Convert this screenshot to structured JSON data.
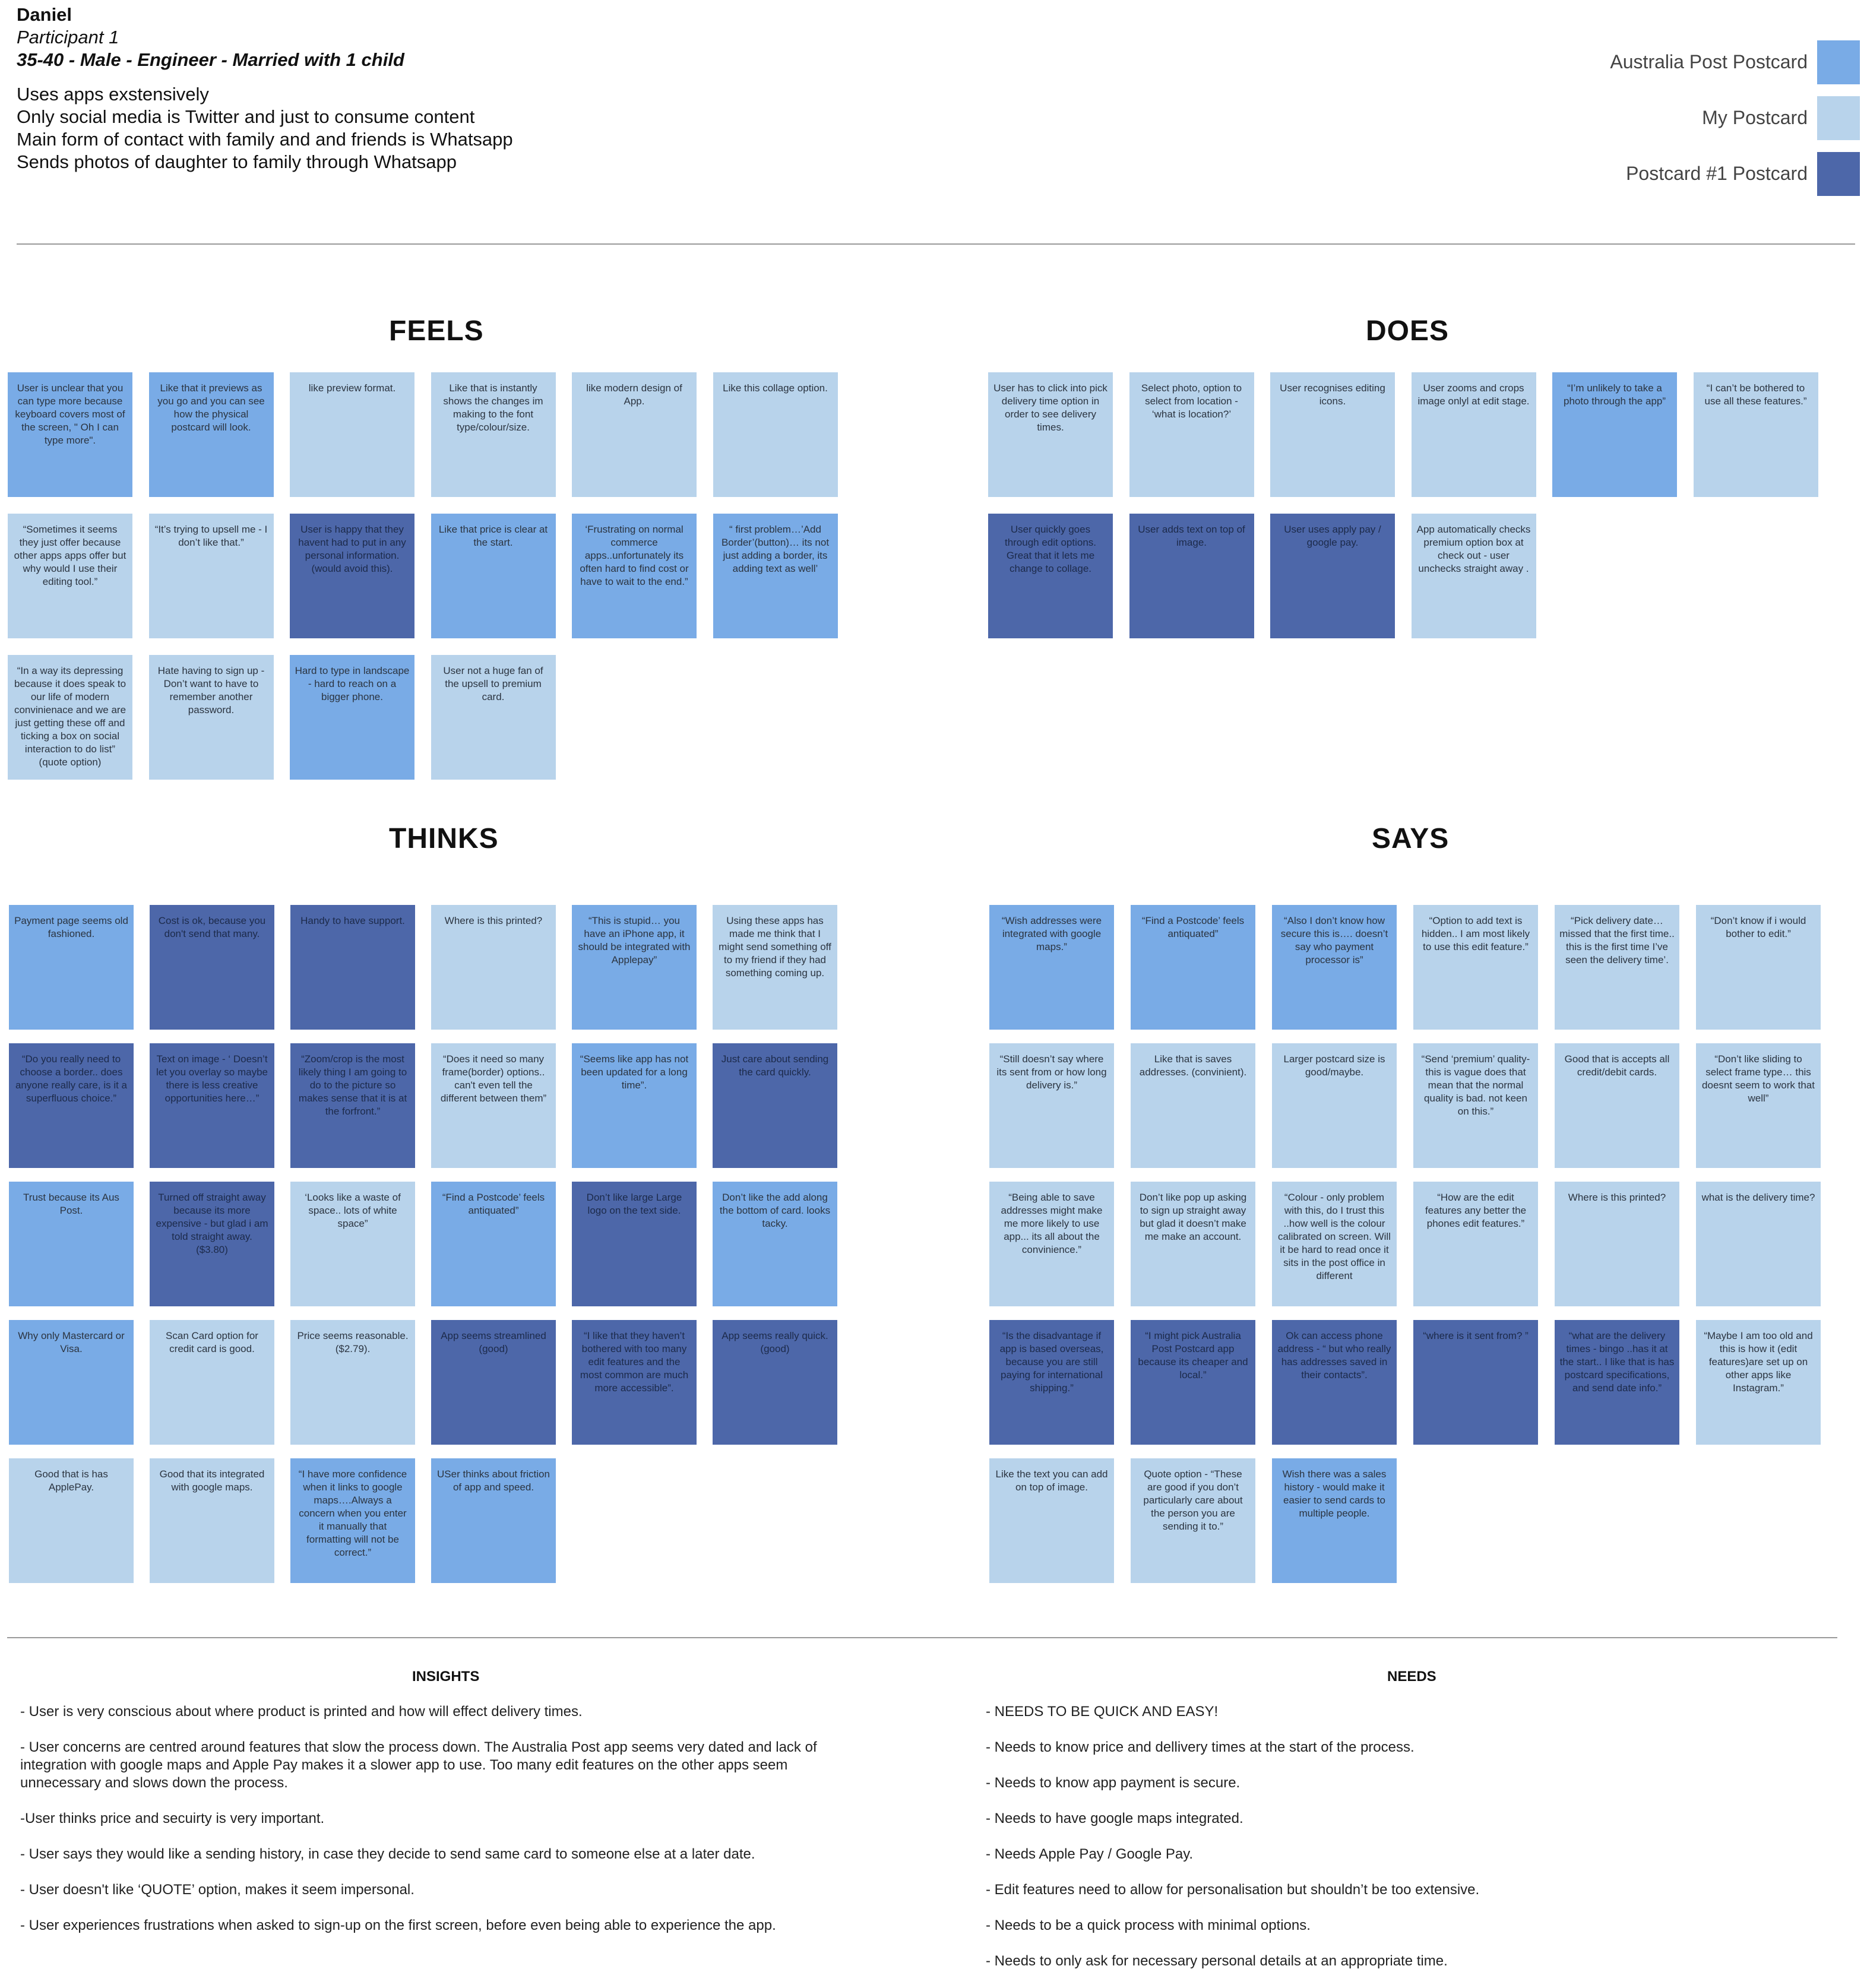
{
  "participant": {
    "name": "Daniel",
    "number": "Participant 1",
    "demographics": "35-40 - Male - Engineer - Married with 1 child",
    "notes": [
      "Uses apps exstensively",
      "Only social media is Twitter and just to consume content",
      "Main form of contact with family and and friends is Whatsapp",
      "Sends photos of daughter to family through Whatsapp"
    ]
  },
  "legend": [
    {
      "label": "Australia Post Postcard",
      "color": "#79abe6"
    },
    {
      "label": "My Postcard",
      "color": "#b8d3eb"
    },
    {
      "label": "Postcard #1 Postcard",
      "color": "#4d67a9"
    }
  ],
  "colors": {
    "ap": "#79abe6",
    "my": "#b8d3eb",
    "p1": "#4d67a9"
  },
  "sections": {
    "feels": {
      "title": "FEELS",
      "notes": [
        {
          "text": "User is unclear that you can type more because keyboard covers most of the screen, \" Oh I can type more\".",
          "app": "ap"
        },
        {
          "text": "Like that it previews as you go and you can see how the physical postcard will look.",
          "app": "ap"
        },
        {
          "text": "like preview format.",
          "app": "my"
        },
        {
          "text": "Like that is instantly shows the changes im making to the font type/colour/size.",
          "app": "my"
        },
        {
          "text": "like modern design of App.",
          "app": "my"
        },
        {
          "text": "Like this collage option.",
          "app": "my"
        },
        {
          "text": "“Sometimes it seems they just offer because other apps apps offer but why would I use their editing tool.”",
          "app": "my"
        },
        {
          "text": "“It’s trying to upsell me - I don’t like that.”",
          "app": "my"
        },
        {
          "text": "User is happy that they havent had to put in any personal information. (would avoid this).",
          "app": "p1"
        },
        {
          "text": "Like that price is clear at the start.",
          "app": "ap"
        },
        {
          "text": "‘Frustrating on normal commerce apps..unfortunately its often hard to find cost or have to wait to the end.”",
          "app": "ap"
        },
        {
          "text": "“ first problem…’Add Border’(button)… its not just adding a border, its adding text as well’",
          "app": "ap"
        },
        {
          "text": "“In a way its depressing because it does speak to our life of modern convinienace and we are just getting these off and ticking a box on social interaction to do list” (quote option)",
          "app": "my"
        },
        {
          "text": "Hate having to sign up - Don’t want to have to remember another password.",
          "app": "my"
        },
        {
          "text": "Hard to type in landscape - hard to reach on a bigger phone.",
          "app": "ap"
        },
        {
          "text": "User not a huge fan of the upsell to premium card.",
          "app": "my"
        }
      ]
    },
    "does": {
      "title": "DOES",
      "notes": [
        {
          "text": "User has to click into pick delivery time option in order to see delivery times.",
          "app": "my"
        },
        {
          "text": "Select photo, option to select from location - ‘what is location?’",
          "app": "my"
        },
        {
          "text": "User recognises editing icons.",
          "app": "my"
        },
        {
          "text": "User zooms and crops image onlyl at edit stage.",
          "app": "my"
        },
        {
          "text": "“I’m unlikely to take a photo through the app”",
          "app": "ap"
        },
        {
          "text": "“I can’t be bothered to use all these features.”",
          "app": "my"
        },
        {
          "text": "User quickly goes through edit options. Great that it lets me change to collage.",
          "app": "p1"
        },
        {
          "text": "User adds text on top of image.",
          "app": "p1"
        },
        {
          "text": "User uses apply pay / google pay.",
          "app": "p1"
        },
        {
          "text": "App automatically checks premium option box at check out - user unchecks straight away .",
          "app": "my"
        }
      ]
    },
    "thinks": {
      "title": "THINKS",
      "notes": [
        {
          "text": "Payment page seems old fashioned.",
          "app": "ap"
        },
        {
          "text": "Cost is ok, because you don't send that many.",
          "app": "p1"
        },
        {
          "text": "Handy to have support.",
          "app": "p1"
        },
        {
          "text": "Where is this printed?",
          "app": "my"
        },
        {
          "text": "“This is stupid… you have an iPhone app, it should be integrated with Applepay”",
          "app": "ap"
        },
        {
          "text": "Using these apps has made me think that I might send something off to my friend if they had something coming up.",
          "app": "my"
        },
        {
          "text": "“Do you really need to choose a border.. does anyone really care, is it a superfluous choice.”",
          "app": "p1"
        },
        {
          "text": "Text on image - ‘ Doesn’t let you overlay so maybe there is less creative opportunities here…”",
          "app": "p1"
        },
        {
          "text": "“Zoom/crop is the most likely thing I am going to do to the picture so makes sense that it is at the forfront.”",
          "app": "p1"
        },
        {
          "text": "“Does it need so many frame(border) options.. can't even tell the different between them”",
          "app": "my"
        },
        {
          "text": "“Seems like app has not been updated for a long time”.",
          "app": "ap"
        },
        {
          "text": "Just care about sending the card quickly.",
          "app": "p1"
        },
        {
          "text": "Trust because its Aus Post.",
          "app": "ap"
        },
        {
          "text": "Turned off straight away because its more expensive - but glad i am told straight away. ($3.80)",
          "app": "p1"
        },
        {
          "text": "‘Looks like a waste of space.. lots of white space”",
          "app": "my"
        },
        {
          "text": "“Find a Postcode’ feels antiquated”",
          "app": "ap"
        },
        {
          "text": "Don’t like large Large logo on the text side.",
          "app": "p1"
        },
        {
          "text": "Don’t like the add along the bottom of card. looks tacky.",
          "app": "ap"
        },
        {
          "text": "Why only Mastercard or Visa.",
          "app": "ap"
        },
        {
          "text": "Scan Card option for credit card is good.",
          "app": "my"
        },
        {
          "text": "Price seems reasonable. ($2.79).",
          "app": "my"
        },
        {
          "text": "App seems streamlined (good)",
          "app": "p1"
        },
        {
          "text": "“I like that they haven’t bothered with too many edit features and the most common are much more accessible”.",
          "app": "p1"
        },
        {
          "text": "App seems really quick. (good)",
          "app": "p1"
        },
        {
          "text": "Good that is has ApplePay.",
          "app": "my"
        },
        {
          "text": "Good that its integrated with google maps.",
          "app": "my"
        },
        {
          "text": "“I have more confidence when it links to google maps….Always a concern when you enter it manually that formatting will not be correct.”",
          "app": "ap"
        },
        {
          "text": "USer thinks about friction of app and speed.",
          "app": "ap"
        }
      ]
    },
    "says": {
      "title": "SAYS",
      "notes": [
        {
          "text": "“Wish addresses were integrated with google maps.”",
          "app": "ap"
        },
        {
          "text": "“Find a Postcode’ feels antiquated”",
          "app": "ap"
        },
        {
          "text": "“Also I don’t know how secure this is…. doesn’t say who payment processor is”",
          "app": "ap"
        },
        {
          "text": "“Option to add text is hidden.. I am most likely to use this edit feature.”",
          "app": "my"
        },
        {
          "text": "“Pick delivery date… missed that the first time.. this is the first time I’ve seen the delivery time’.",
          "app": "my"
        },
        {
          "text": "“Don’t know if i would bother to edit.”",
          "app": "my"
        },
        {
          "text": "“Still doesn’t say where its sent from or how long delivery is.”",
          "app": "my"
        },
        {
          "text": "Like that is saves addresses. (convinient).",
          "app": "my"
        },
        {
          "text": "Larger postcard size is good/maybe.",
          "app": "my"
        },
        {
          "text": "“Send ‘premium’ quality- this is vague does that mean that the normal quality is bad. not keen on this.”",
          "app": "my"
        },
        {
          "text": "Good that is accepts all credit/debit cards.",
          "app": "my"
        },
        {
          "text": "“Don’t like sliding to select frame type… this doesnt seem to work that well”",
          "app": "my"
        },
        {
          "text": "“Being able to save addresses might make me more likely to use app... its all about the convinience.”",
          "app": "my"
        },
        {
          "text": "Don’t like pop up asking to sign up straight away but glad it doesn’t make me make an account.",
          "app": "my"
        },
        {
          "text": "“Colour - only problem with this, do I trust this ..how well is the colour calibrated on screen. Will it be hard to read once it sits in the post office in different",
          "app": "my"
        },
        {
          "text": "“How are the edit features any better the phones edit features.”",
          "app": "my"
        },
        {
          "text": "Where is this printed?",
          "app": "my"
        },
        {
          "text": "what is the delivery time?",
          "app": "my"
        },
        {
          "text": "“Is the disadvantage if app is based overseas, because you are still paying for international shipping.”",
          "app": "p1"
        },
        {
          "text": "“I might pick Australia Post Postcard app because its cheaper and local.”",
          "app": "p1"
        },
        {
          "text": "Ok can access phone address - “ but who really has addresses saved in their contacts”.",
          "app": "p1"
        },
        {
          "text": "“where is it sent from? ”",
          "app": "p1"
        },
        {
          "text": "“what are the delivery times - bingo ..has it at the start.. I like that is has postcard specifications, and send date info.”",
          "app": "p1"
        },
        {
          "text": "“Maybe I am too old and this is how it (edit features)are set up on other apps like Instagram.”",
          "app": "my"
        },
        {
          "text": "Like the text you can add on top of image.",
          "app": "my"
        },
        {
          "text": "Quote option - “These are good if you don’t particularly care about the person you are sending it to.”",
          "app": "my"
        },
        {
          "text": "Wish there was a sales history - would make it easier to send cards to multiple people.",
          "app": "ap"
        }
      ]
    }
  },
  "insights": {
    "heading": "INSIGHTS",
    "items": [
      "-  User is very conscious about where product is printed and how will effect delivery times.",
      "-  User concerns are centred around features that slow the process down. The Australia Post app seems very dated and lack of integration with google maps and Apple Pay makes it a slower app to use. Too many edit features on the other apps seem unnecessary and slows down the process.",
      "-User thinks price and secuirty is very important.",
      "- User says they would like a sending history, in case they decide to send same card to someone else at a later date.",
      "- User doesn't like ‘QUOTE’ option, makes it seem impersonal.",
      "- User experiences frustrations when asked to sign-up on the first screen, before even being able to experience the app."
    ]
  },
  "needs": {
    "heading": "NEEDS",
    "items": [
      "-  NEEDS TO BE QUICK AND EASY!",
      "- Needs to know price and dellivery times at the start of the process.",
      "- Needs to know app payment is secure.",
      "- Needs to have google maps integrated.",
      "- Needs Apple Pay / Google Pay.",
      "- Edit features need to allow for personalisation but shouldn’t be too extensive.",
      "- Needs to be a quick process with minimal options.",
      "- Needs to only ask for necessary personal details at an appropriate time."
    ]
  }
}
